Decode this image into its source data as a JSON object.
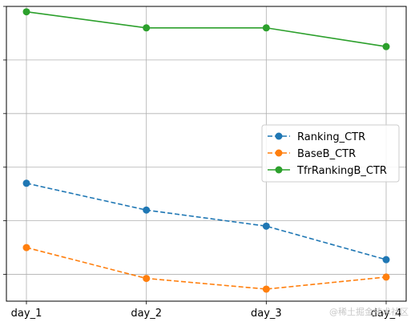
{
  "chart_data": {
    "type": "line",
    "categories": [
      "day_1",
      "day_2",
      "day_3",
      "day_4"
    ],
    "ylim": [
      0,
      110
    ],
    "y_ticks": [
      10,
      30,
      50,
      70,
      90,
      110
    ],
    "y_tick_labels_visible": false,
    "grid": true,
    "legend_position": "center-right",
    "series": [
      {
        "name": "Ranking_CTR",
        "values": [
          44,
          34,
          28,
          15.5
        ],
        "color": "#1f77b4",
        "linestyle": "dashed",
        "marker": "circle"
      },
      {
        "name": "BaseB_CTR",
        "values": [
          20,
          8.5,
          4.5,
          9
        ],
        "color": "#ff7f0e",
        "linestyle": "dashed",
        "marker": "circle"
      },
      {
        "name": "TfrRankingB_CTR",
        "values": [
          108,
          102,
          102,
          95
        ],
        "color": "#2ca02c",
        "linestyle": "solid",
        "marker": "circle"
      }
    ]
  },
  "watermark": "@稀土掘金技术社区"
}
